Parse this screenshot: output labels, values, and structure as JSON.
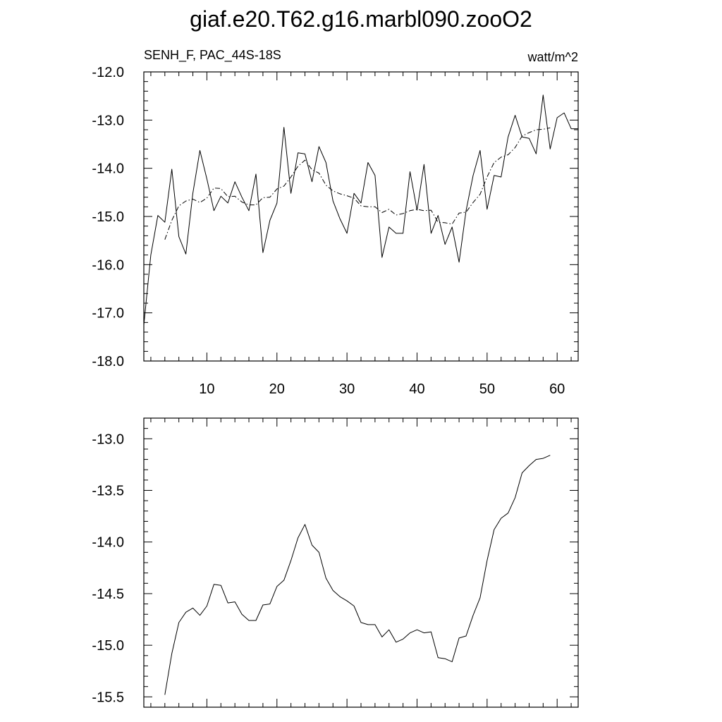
{
  "title": "giaf.e20.T62.g16.marbl090.zooO2",
  "chart_data": [
    {
      "type": "line",
      "left_label": "SENH_F, PAC_44S-18S",
      "right_label": "watt/m^2",
      "xlim": [
        1,
        63
      ],
      "ylim": [
        -18.0,
        -12.0
      ],
      "x_ticks": [
        10,
        20,
        30,
        40,
        50,
        60
      ],
      "y_ticks": [
        -18.0,
        -17.0,
        -16.0,
        -15.0,
        -14.0,
        -13.0,
        -12.0
      ],
      "x_tick_labels": [
        "10",
        "20",
        "30",
        "40",
        "50",
        "60"
      ],
      "y_tick_labels": [
        "-18.0",
        "-17.0",
        "-16.0",
        "-15.0",
        "-14.0",
        "-13.0",
        "-12.0"
      ],
      "series": [
        {
          "style": "solid",
          "x": [
            1,
            2,
            3,
            4,
            5,
            6,
            7,
            8,
            9,
            10,
            11,
            12,
            13,
            14,
            15,
            16,
            17,
            18,
            19,
            20,
            21,
            22,
            23,
            24,
            25,
            26,
            27,
            28,
            29,
            30,
            31,
            32,
            33,
            34,
            35,
            36,
            37,
            38,
            39,
            40,
            41,
            42,
            43,
            44,
            45,
            46,
            47,
            48,
            49,
            50,
            51,
            52,
            53,
            54,
            55,
            56,
            57,
            58,
            59,
            60,
            61,
            62,
            63
          ],
          "values": [
            -17.25,
            -15.8,
            -14.98,
            -15.12,
            -14.02,
            -15.42,
            -15.78,
            -14.52,
            -13.63,
            -14.22,
            -14.88,
            -14.58,
            -14.72,
            -14.28,
            -14.6,
            -14.88,
            -14.12,
            -15.75,
            -15.08,
            -14.72,
            -13.15,
            -14.52,
            -13.68,
            -13.7,
            -14.28,
            -13.55,
            -13.88,
            -14.68,
            -15.05,
            -15.35,
            -14.52,
            -14.72,
            -13.88,
            -14.15,
            -15.85,
            -15.22,
            -15.35,
            -15.35,
            -14.07,
            -14.87,
            -13.92,
            -15.35,
            -14.98,
            -15.58,
            -15.22,
            -15.95,
            -14.88,
            -14.15,
            -13.63,
            -14.85,
            -14.15,
            -14.18,
            -13.35,
            -12.9,
            -13.35,
            -13.38,
            -13.7,
            -12.48,
            -13.6,
            -12.95,
            -12.85,
            -13.18,
            -13.18
          ]
        },
        {
          "style": "dash-dot",
          "x": [
            4,
            5,
            6,
            7,
            8,
            9,
            10,
            11,
            12,
            13,
            14,
            15,
            16,
            17,
            18,
            19,
            20,
            21,
            22,
            23,
            24,
            25,
            26,
            27,
            28,
            29,
            30,
            31,
            32,
            33,
            34,
            35,
            36,
            37,
            38,
            39,
            40,
            41,
            42,
            43,
            44,
            45,
            46,
            47,
            48,
            49,
            50,
            51,
            52,
            53,
            54,
            55,
            56,
            57,
            58,
            59
          ],
          "values": [
            -15.48,
            -15.08,
            -14.78,
            -14.68,
            -14.64,
            -14.71,
            -14.62,
            -14.41,
            -14.42,
            -14.59,
            -14.58,
            -14.7,
            -14.76,
            -14.76,
            -14.61,
            -14.6,
            -14.43,
            -14.37,
            -14.18,
            -13.96,
            -13.83,
            -14.03,
            -14.1,
            -14.35,
            -14.47,
            -14.53,
            -14.57,
            -14.62,
            -14.78,
            -14.8,
            -14.8,
            -14.92,
            -14.85,
            -14.97,
            -14.94,
            -14.88,
            -14.85,
            -14.88,
            -14.87,
            -15.12,
            -15.13,
            -15.16,
            -14.93,
            -14.91,
            -14.71,
            -14.54,
            -14.18,
            -13.88,
            -13.77,
            -13.72,
            -13.57,
            -13.33,
            -13.26,
            -13.2,
            -13.19,
            -13.16
          ]
        }
      ]
    },
    {
      "type": "line",
      "xlim": [
        1,
        63
      ],
      "ylim": [
        -15.6,
        -12.8
      ],
      "x_ticks": [
        10,
        20,
        30,
        40,
        50,
        60
      ],
      "y_ticks": [
        -15.5,
        -15.0,
        -14.5,
        -14.0,
        -13.5,
        -13.0
      ],
      "y_tick_labels": [
        "-15.5",
        "-15.0",
        "-14.5",
        "-14.0",
        "-13.5",
        "-13.0"
      ],
      "series": [
        {
          "style": "solid",
          "x": [
            4,
            5,
            6,
            7,
            8,
            9,
            10,
            11,
            12,
            13,
            14,
            15,
            16,
            17,
            18,
            19,
            20,
            21,
            22,
            23,
            24,
            25,
            26,
            27,
            28,
            29,
            30,
            31,
            32,
            33,
            34,
            35,
            36,
            37,
            38,
            39,
            40,
            41,
            42,
            43,
            44,
            45,
            46,
            47,
            48,
            49,
            50,
            51,
            52,
            53,
            54,
            55,
            56,
            57,
            58,
            59
          ],
          "values": [
            -15.48,
            -15.08,
            -14.78,
            -14.68,
            -14.64,
            -14.71,
            -14.62,
            -14.41,
            -14.42,
            -14.59,
            -14.58,
            -14.7,
            -14.76,
            -14.76,
            -14.61,
            -14.6,
            -14.43,
            -14.37,
            -14.18,
            -13.96,
            -13.83,
            -14.03,
            -14.1,
            -14.35,
            -14.47,
            -14.53,
            -14.57,
            -14.62,
            -14.78,
            -14.8,
            -14.8,
            -14.92,
            -14.85,
            -14.97,
            -14.94,
            -14.88,
            -14.85,
            -14.88,
            -14.87,
            -15.12,
            -15.13,
            -15.16,
            -14.93,
            -14.91,
            -14.71,
            -14.54,
            -14.18,
            -13.88,
            -13.77,
            -13.72,
            -13.57,
            -13.33,
            -13.26,
            -13.2,
            -13.19,
            -13.16
          ]
        }
      ]
    }
  ]
}
